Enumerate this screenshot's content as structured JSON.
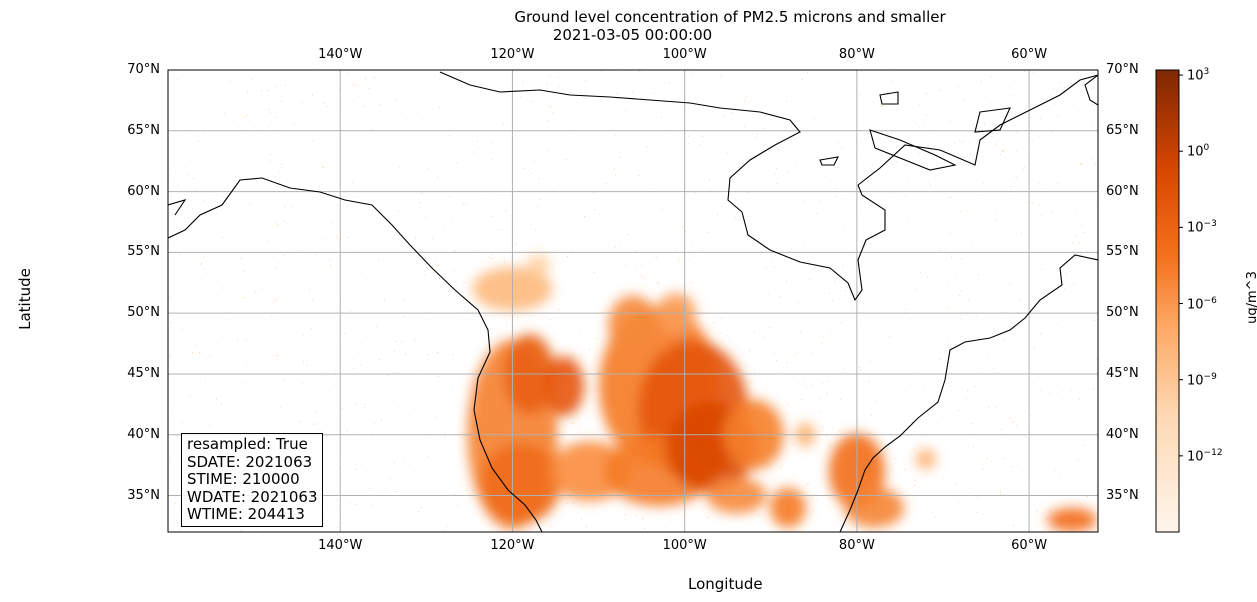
{
  "chart_data": {
    "type": "heatmap",
    "title": "Ground level concentration of PM2.5 microns and smaller",
    "subtitle": "2021-03-05 00:00:00",
    "xlabel": "Longitude",
    "ylabel": "Latitude",
    "xlim": [
      -160,
      -52
    ],
    "ylim": [
      32,
      70
    ],
    "grid": true,
    "x_ticks": [
      {
        "value": -140,
        "label": "140°W"
      },
      {
        "value": -120,
        "label": "120°W"
      },
      {
        "value": -100,
        "label": "100°W"
      },
      {
        "value": -80,
        "label": "80°W"
      },
      {
        "value": -60,
        "label": "60°W"
      }
    ],
    "y_ticks": [
      {
        "value": 70,
        "label": "70°N"
      },
      {
        "value": 65,
        "label": "65°N"
      },
      {
        "value": 60,
        "label": "60°N"
      },
      {
        "value": 55,
        "label": "55°N"
      },
      {
        "value": 50,
        "label": "50°N"
      },
      {
        "value": 45,
        "label": "45°N"
      },
      {
        "value": 40,
        "label": "40°N"
      },
      {
        "value": 35,
        "label": "35°N"
      }
    ],
    "colorbar": {
      "label": "ug/m^3",
      "scale": "log",
      "range_exp": [
        -15,
        3.2
      ],
      "colormap": "Oranges",
      "ticks": [
        {
          "exp": 3,
          "base": "10",
          "sup": "3"
        },
        {
          "exp": 0,
          "base": "10",
          "sup": "0"
        },
        {
          "exp": -3,
          "base": "10",
          "sup": "−3"
        },
        {
          "exp": -6,
          "base": "10",
          "sup": "−6"
        },
        {
          "exp": -9,
          "base": "10",
          "sup": "−9"
        },
        {
          "exp": -12,
          "base": "10",
          "sup": "−12"
        }
      ]
    },
    "annotation": [
      "resampled: True",
      "SDATE: 2021063",
      "STIME: 210000",
      "WDATE: 2021063",
      "WTIME: 204413"
    ]
  }
}
